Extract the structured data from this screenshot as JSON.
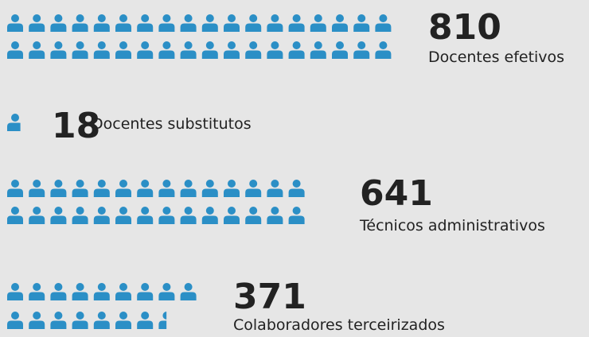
{
  "chart_data": {
    "type": "pictogram",
    "color": "#2b8fc6",
    "unit": 22.5,
    "categories": [
      "Docentes efetivos",
      "Docentes substitutos",
      "Técnicos administrativos",
      "Colaboradores terceirizados"
    ],
    "values": [
      810,
      18,
      641,
      371
    ]
  }
}
